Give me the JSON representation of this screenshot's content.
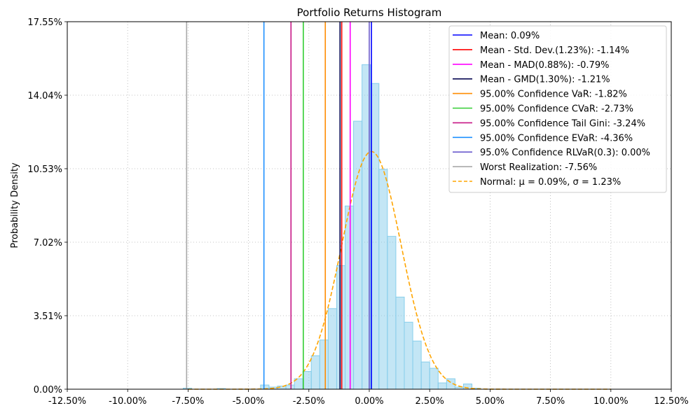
{
  "chart_data": {
    "type": "bar",
    "title": "Portfolio Returns Histogram",
    "xlabel": "",
    "ylabel": "Probability Density",
    "xlim": [
      -0.125,
      0.125
    ],
    "ylim": [
      0,
      0.1755
    ],
    "x_ticks": [
      {
        "value": -0.125,
        "label": "-12.50%"
      },
      {
        "value": -0.1,
        "label": "-10.00%"
      },
      {
        "value": -0.075,
        "label": "-7.50%"
      },
      {
        "value": -0.05,
        "label": "-5.00%"
      },
      {
        "value": -0.025,
        "label": "-2.50%"
      },
      {
        "value": 0.0,
        "label": "0.00%"
      },
      {
        "value": 0.025,
        "label": "2.50%"
      },
      {
        "value": 0.05,
        "label": "5.00%"
      },
      {
        "value": 0.075,
        "label": "7.50%"
      },
      {
        "value": 0.1,
        "label": "10.00%"
      },
      {
        "value": 0.125,
        "label": "12.50%"
      }
    ],
    "y_ticks": [
      {
        "value": 0.0,
        "label": "0.00%"
      },
      {
        "value": 0.0351,
        "label": "3.51%"
      },
      {
        "value": 0.0702,
        "label": "7.02%"
      },
      {
        "value": 0.1053,
        "label": "10.53%"
      },
      {
        "value": 0.1404,
        "label": "14.04%"
      },
      {
        "value": 0.1755,
        "label": "17.55%"
      }
    ],
    "grid": true,
    "legend_position": "top-right",
    "histogram": {
      "color": "#87ceeb",
      "edge_color": "#87ceeb",
      "bins": [
        {
          "x0": -0.045,
          "x1": -0.0415,
          "y": 0.002
        },
        {
          "x0": -0.0415,
          "x1": -0.038,
          "y": 0.001
        },
        {
          "x0": -0.038,
          "x1": -0.0345,
          "y": 0.0015
        },
        {
          "x0": -0.0345,
          "x1": -0.031,
          "y": 0.002
        },
        {
          "x0": -0.031,
          "x1": -0.0275,
          "y": 0.005
        },
        {
          "x0": -0.0275,
          "x1": -0.024,
          "y": 0.0085
        },
        {
          "x0": -0.024,
          "x1": -0.0205,
          "y": 0.016
        },
        {
          "x0": -0.0205,
          "x1": -0.017,
          "y": 0.0235
        },
        {
          "x0": -0.017,
          "x1": -0.0135,
          "y": 0.0385
        },
        {
          "x0": -0.0135,
          "x1": -0.01,
          "y": 0.059
        },
        {
          "x0": -0.01,
          "x1": -0.0065,
          "y": 0.0875
        },
        {
          "x0": -0.0065,
          "x1": -0.003,
          "y": 0.128
        },
        {
          "x0": -0.003,
          "x1": 0.0005,
          "y": 0.155
        },
        {
          "x0": 0.0005,
          "x1": 0.004,
          "y": 0.146
        },
        {
          "x0": 0.004,
          "x1": 0.0075,
          "y": 0.105
        },
        {
          "x0": 0.0075,
          "x1": 0.011,
          "y": 0.073
        },
        {
          "x0": 0.011,
          "x1": 0.0145,
          "y": 0.044
        },
        {
          "x0": 0.0145,
          "x1": 0.018,
          "y": 0.032
        },
        {
          "x0": 0.018,
          "x1": 0.0215,
          "y": 0.023
        },
        {
          "x0": 0.0215,
          "x1": 0.025,
          "y": 0.013
        },
        {
          "x0": 0.025,
          "x1": 0.0285,
          "y": 0.01
        },
        {
          "x0": 0.0285,
          "x1": 0.032,
          "y": 0.003
        },
        {
          "x0": 0.032,
          "x1": 0.0355,
          "y": 0.005
        },
        {
          "x0": 0.0355,
          "x1": 0.039,
          "y": 0.001
        },
        {
          "x0": 0.039,
          "x1": 0.0425,
          "y": 0.0025
        },
        {
          "x0": 0.0425,
          "x1": 0.046,
          "y": 0.0005
        },
        {
          "x0": -0.077,
          "x1": -0.0735,
          "y": 0.0005
        },
        {
          "x0": -0.063,
          "x1": -0.0595,
          "y": 0.0003
        }
      ]
    },
    "series": [
      {
        "name": "Mean: 0.09%",
        "kind": "vline",
        "x": 0.0009,
        "color": "#0000ff",
        "style": "solid"
      },
      {
        "name": "Mean - Std. Dev.(1.23%): -1.14%",
        "kind": "vline",
        "x": -0.0114,
        "color": "#ff0000",
        "style": "solid"
      },
      {
        "name": "Mean - MAD(0.88%): -0.79%",
        "kind": "vline",
        "x": -0.0079,
        "color": "#ff00ff",
        "style": "solid"
      },
      {
        "name": "Mean - GMD(1.30%): -1.21%",
        "kind": "vline",
        "x": -0.0121,
        "color": "#00004d",
        "style": "solid"
      },
      {
        "name": "95.00% Confidence VaR: -1.82%",
        "kind": "vline",
        "x": -0.0182,
        "color": "#ff8c00",
        "style": "solid"
      },
      {
        "name": "95.00% Confidence CVaR: -2.73%",
        "kind": "vline",
        "x": -0.0273,
        "color": "#32cd32",
        "style": "solid"
      },
      {
        "name": "95.00% Confidence Tail Gini: -3.24%",
        "kind": "vline",
        "x": -0.0324,
        "color": "#c71585",
        "style": "solid"
      },
      {
        "name": "95.00% Confidence EVaR: -4.36%",
        "kind": "vline",
        "x": -0.0436,
        "color": "#1e90ff",
        "style": "solid"
      },
      {
        "name": "95.0% Confidence RLVaR(0.3): 0.00%",
        "kind": "vline",
        "x": 0.0,
        "color": "#6a5acd",
        "style": "solid"
      },
      {
        "name": "Worst Realization: -7.56%",
        "kind": "vline",
        "x": -0.0756,
        "color": "#a9a9a9",
        "style": "solid"
      },
      {
        "name": "Normal: $\\mu = 0.09\\%$, $\\sigma = 1.23\\%$",
        "legend_label": "Normal: μ = 0.09%, σ = 1.23%",
        "kind": "normal_pdf",
        "mu": 0.0009,
        "sigma": 0.0123,
        "peak": 0.1135,
        "x_range": [
          -0.075,
          0.1
        ],
        "color": "#ffa500",
        "style": "dashed"
      }
    ]
  }
}
